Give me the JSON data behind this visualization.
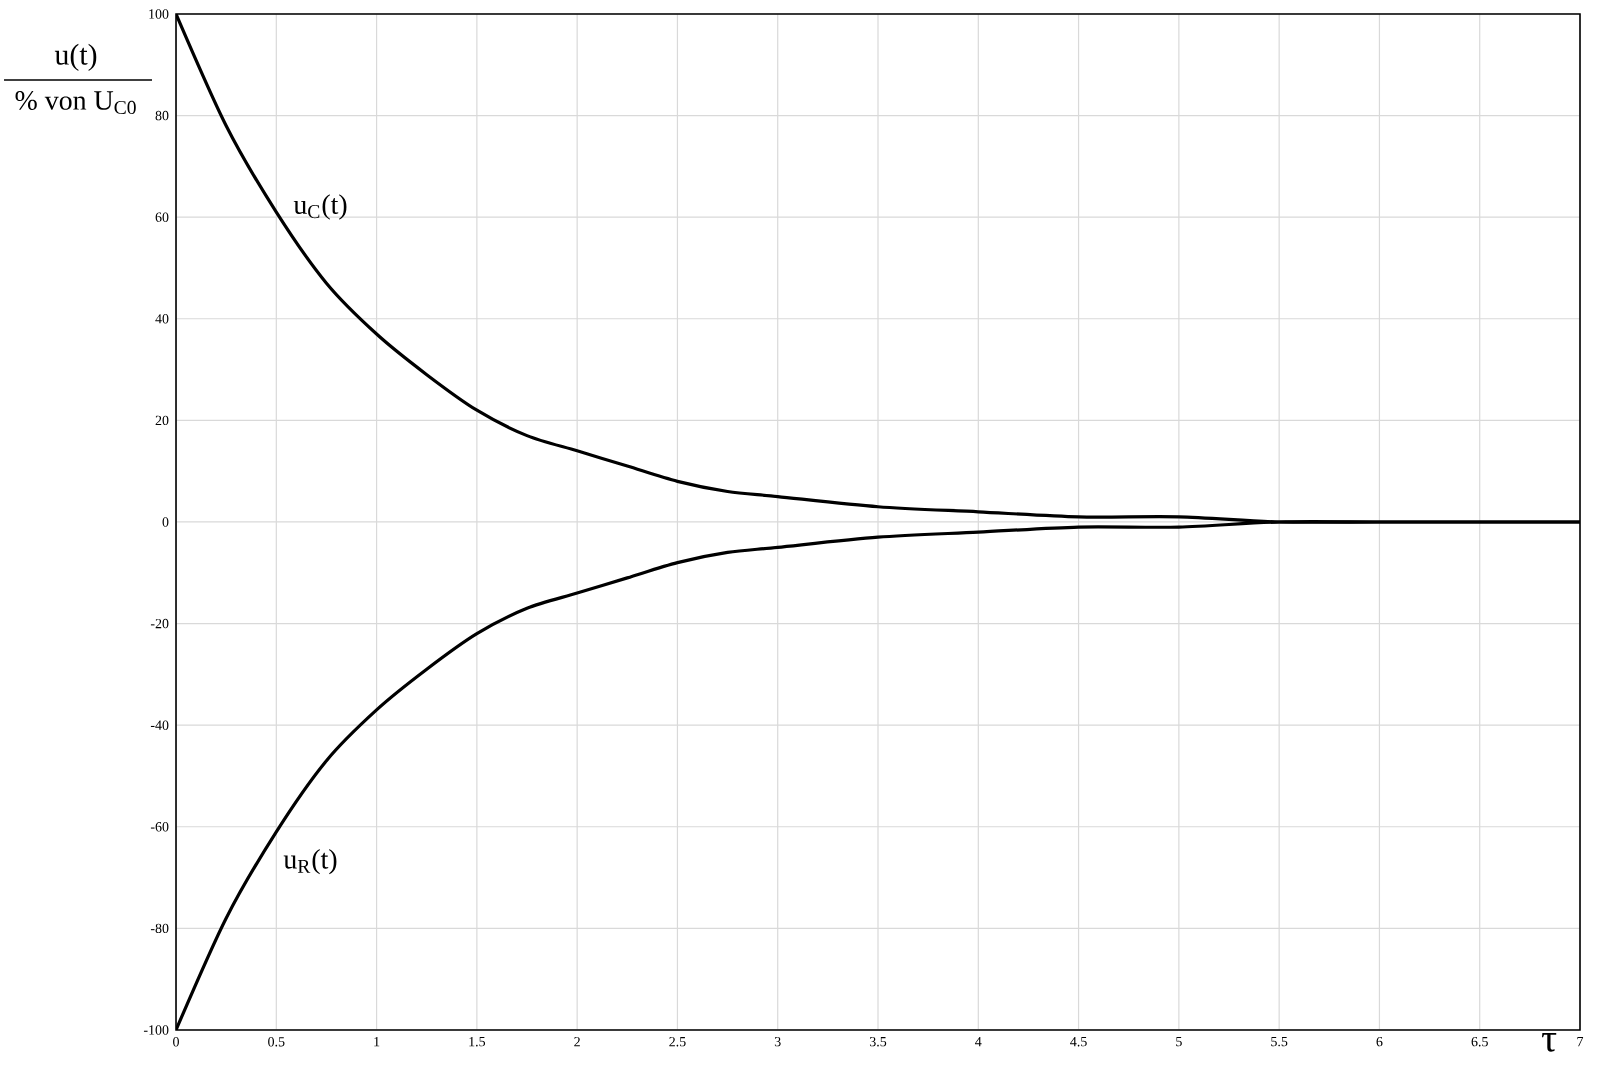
{
  "chart_data": {
    "type": "line",
    "ylabel": "u(t)",
    "xlabel": "τ",
    "x": [
      0,
      0.25,
      0.5,
      0.75,
      1,
      1.25,
      1.5,
      1.75,
      2,
      2.25,
      2.5,
      2.75,
      3,
      3.5,
      4,
      4.5,
      5,
      5.5,
      6,
      6.5,
      7
    ],
    "series": [
      {
        "color": "#000000",
        "values": [
          100,
          78,
          61,
          47,
          37,
          29,
          22,
          17,
          14,
          11,
          8,
          6,
          5,
          3,
          2,
          1,
          1,
          0,
          0,
          0,
          0
        ]
      },
      {
        "color": "#000000",
        "values": [
          -100,
          -78,
          -61,
          -47,
          -37,
          -29,
          -22,
          -17,
          -14,
          -11,
          -8,
          -6,
          -5,
          -3,
          -2,
          -1,
          -1,
          0,
          0,
          0,
          0
        ]
      }
    ],
    "xlim": [
      0,
      7
    ],
    "ylim": [
      -100,
      100
    ],
    "xticks": [
      0,
      0.5,
      1,
      1.5,
      2,
      2.5,
      3,
      3.5,
      4,
      4.5,
      5,
      5.5,
      6,
      6.5,
      7
    ],
    "yticks": [
      -100,
      -80,
      -60,
      -40,
      -20,
      0,
      20,
      40,
      60,
      80,
      100
    ],
    "grid": true,
    "line_style": "solid",
    "annotations": [
      {
        "text": "u$_{C}$(t)",
        "x": 0.55,
        "y": 62
      },
      {
        "text": "u$_{R}$(t)",
        "x": 0.5,
        "y": -63
      },
      "% von U$_{C0}$"
    ]
  }
}
